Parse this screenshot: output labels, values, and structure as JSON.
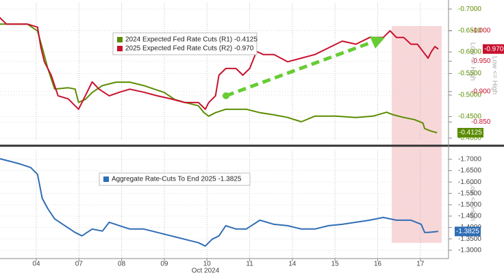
{
  "chart_data": [
    {
      "type": "line",
      "ylim": [
        -0.395,
        -0.713
      ],
      "yticks": [
        {
          "value": -0.7,
          "label": "-0.7000"
        },
        {
          "value": -0.65,
          "label": "-0.6500"
        },
        {
          "value": -0.6,
          "label": "-0.6000"
        },
        {
          "value": -0.55,
          "label": "-0.5500"
        },
        {
          "value": -0.5,
          "label": "-0.5000"
        },
        {
          "value": -0.45,
          "label": "-0.4500"
        },
        {
          "value": -0.4,
          "label": "-0.4000"
        }
      ],
      "y2lim": [
        -0.82,
        -1.045
      ],
      "y2ticks": [
        {
          "value": -1.0,
          "label": "-1.000"
        },
        {
          "value": -0.95,
          "label": "-0.950"
        },
        {
          "value": -0.9,
          "label": "-0.900"
        },
        {
          "value": -0.85,
          "label": "-0.850"
        }
      ],
      "y_label": "Low <= High",
      "y2_label": "Low <= High",
      "xlim": [
        0.15,
        10.66
      ],
      "series": [
        {
          "name": "2024 Expected Fed Rate Cuts (R1) -0.4125",
          "color": "#5b8c00",
          "axis": "y",
          "last_label": "-0.4125",
          "x": [
            0.14,
            0.47,
            0.79,
            1.03,
            1.14,
            1.27,
            1.43,
            1.75,
            1.91,
            1.99,
            2.15,
            2.31,
            2.55,
            2.87,
            3.19,
            3.52,
            3.76,
            4.0,
            4.24,
            4.48,
            4.8,
            4.93,
            5.04,
            5.2,
            5.44,
            5.92,
            6.24,
            6.57,
            6.89,
            7.21,
            7.53,
            8.01,
            8.49,
            8.89,
            9.21,
            9.37,
            9.61,
            9.86,
            10.06,
            10.1,
            10.18,
            10.26,
            10.39
          ],
          "values": [
            -0.665,
            -0.665,
            -0.665,
            -0.649,
            -0.61,
            -0.562,
            -0.514,
            -0.517,
            -0.514,
            -0.483,
            -0.49,
            -0.506,
            -0.522,
            -0.53,
            -0.53,
            -0.522,
            -0.514,
            -0.506,
            -0.49,
            -0.483,
            -0.475,
            -0.459,
            -0.451,
            -0.459,
            -0.467,
            -0.467,
            -0.459,
            -0.454,
            -0.448,
            -0.438,
            -0.451,
            -0.451,
            -0.448,
            -0.451,
            -0.46,
            -0.454,
            -0.448,
            -0.443,
            -0.435,
            -0.422,
            -0.419,
            -0.416,
            -0.4125
          ]
        },
        {
          "name": "2025 Expected Fed Rate Cuts (R2) -0.970",
          "color": "#c8102e",
          "axis": "y2",
          "last_label": "-0.970",
          "x": [
            0.14,
            0.3,
            0.47,
            0.79,
            1.03,
            1.11,
            1.19,
            1.35,
            1.51,
            1.75,
            1.99,
            2.15,
            2.31,
            2.47,
            2.71,
            2.95,
            3.19,
            3.52,
            3.84,
            4.16,
            4.48,
            4.8,
            4.96,
            5.04,
            5.2,
            5.28,
            5.44,
            5.68,
            5.84,
            6.0,
            6.16,
            6.32,
            6.57,
            6.89,
            7.21,
            7.53,
            7.85,
            8.17,
            8.49,
            8.81,
            9.13,
            9.29,
            9.44,
            9.61,
            9.78,
            9.93,
            10.06,
            10.18,
            10.26,
            10.34,
            10.42
          ],
          "values": [
            -1.022,
            -1.011,
            -1.011,
            -1.011,
            -1.006,
            -0.972,
            -0.949,
            -0.927,
            -0.893,
            -0.888,
            -0.871,
            -0.893,
            -0.916,
            -0.904,
            -0.893,
            -0.899,
            -0.904,
            -0.899,
            -0.893,
            -0.888,
            -0.882,
            -0.882,
            -0.871,
            -0.882,
            -0.893,
            -0.927,
            -0.938,
            -0.938,
            -0.927,
            -0.938,
            -0.966,
            -0.961,
            -0.961,
            -0.949,
            -0.955,
            -0.961,
            -0.972,
            -0.983,
            -0.978,
            -0.989,
            -0.989,
            -1.0,
            -0.989,
            -0.989,
            -0.978,
            -0.978,
            -0.966,
            -0.955,
            -0.966,
            -0.974,
            -0.97
          ]
        }
      ]
    },
    {
      "type": "line",
      "x_label": "Oct 2024",
      "xlim": [
        0.15,
        10.66
      ],
      "xticks": [
        {
          "value": 1,
          "label": "04"
        },
        {
          "value": 2,
          "label": "07"
        },
        {
          "value": 3,
          "label": "08"
        },
        {
          "value": 4,
          "label": "09"
        },
        {
          "value": 5,
          "label": "10"
        },
        {
          "value": 6,
          "label": "11"
        },
        {
          "value": 7,
          "label": "14"
        },
        {
          "value": 8,
          "label": "15"
        },
        {
          "value": 9,
          "label": "16"
        },
        {
          "value": 10,
          "label": "17"
        }
      ],
      "ylim": [
        -1.263,
        -1.739
      ],
      "yticks": [
        {
          "value": -1.7,
          "label": "-1.7000"
        },
        {
          "value": -1.65,
          "label": "-1.6500"
        },
        {
          "value": -1.6,
          "label": "-1.6000"
        },
        {
          "value": -1.55,
          "label": "-1.5500"
        },
        {
          "value": -1.5,
          "label": "-1.5000"
        },
        {
          "value": -1.45,
          "label": "-1.4500"
        },
        {
          "value": -1.4,
          "label": "-1.4000"
        },
        {
          "value": -1.35,
          "label": "-1.3500"
        },
        {
          "value": -1.3,
          "label": "-1.3000"
        }
      ],
      "y_label": "Low <= High",
      "series": [
        {
          "name": "Aggregate Rate-Cuts To End 2025 -1.3825",
          "color": "#2f6db5",
          "axis": "y",
          "last_label": "-1.3825",
          "x": [
            0.14,
            0.39,
            0.63,
            0.87,
            1.03,
            1.14,
            1.27,
            1.43,
            1.67,
            1.91,
            2.07,
            2.31,
            2.55,
            2.71,
            2.95,
            3.19,
            3.52,
            3.84,
            4.16,
            4.48,
            4.8,
            4.96,
            5.12,
            5.28,
            5.44,
            5.68,
            5.92,
            6.24,
            6.57,
            6.89,
            7.21,
            7.53,
            7.85,
            8.17,
            8.49,
            8.81,
            9.13,
            9.44,
            9.78,
            10.02,
            10.1,
            10.18,
            10.42
          ],
          "values": [
            -1.703,
            -1.691,
            -1.679,
            -1.664,
            -1.634,
            -1.528,
            -1.483,
            -1.438,
            -1.408,
            -1.378,
            -1.363,
            -1.393,
            -1.384,
            -1.423,
            -1.408,
            -1.393,
            -1.393,
            -1.378,
            -1.363,
            -1.348,
            -1.333,
            -1.318,
            -1.348,
            -1.363,
            -1.408,
            -1.393,
            -1.393,
            -1.432,
            -1.414,
            -1.408,
            -1.393,
            -1.393,
            -1.408,
            -1.414,
            -1.423,
            -1.432,
            -1.444,
            -1.432,
            -1.432,
            -1.414,
            -1.378,
            -1.378,
            -1.3825
          ]
        }
      ]
    }
  ]
}
